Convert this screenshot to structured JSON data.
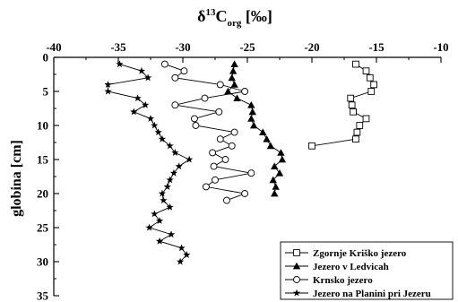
{
  "chart_data": {
    "type": "scatter",
    "title": "",
    "xlabel": {
      "prefix": "δ",
      "sup": "13",
      "main": "C",
      "sub": "org",
      "suffix": " [‰]"
    },
    "ylabel": "globina [cm]",
    "xlim": [
      -40,
      -10
    ],
    "ylim": [
      0,
      35
    ],
    "y_inverted": true,
    "x_axis_position": "top",
    "xticks": [
      "-40",
      "-35",
      "-30",
      "-25",
      "-20",
      "-15",
      "-10"
    ],
    "xtick_values": [
      -40,
      -35,
      -30,
      -25,
      -20,
      -15,
      -10
    ],
    "yticks": [
      "0",
      "5",
      "10",
      "15",
      "20",
      "25",
      "30",
      "35"
    ],
    "ytick_values": [
      0,
      5,
      10,
      15,
      20,
      25,
      30,
      35
    ],
    "grid": false,
    "legend_position": "bottom-right",
    "series": [
      {
        "name": "Zgornje Kriško jezero",
        "marker": "square-open",
        "points": [
          [
            -16.6,
            1
          ],
          [
            -15.8,
            2
          ],
          [
            -15.5,
            3
          ],
          [
            -15.2,
            4
          ],
          [
            -15.4,
            5
          ],
          [
            -17.0,
            6
          ],
          [
            -16.9,
            7
          ],
          [
            -16.8,
            8
          ],
          [
            -15.8,
            9
          ],
          [
            -16.3,
            10
          ],
          [
            -16.5,
            11
          ],
          [
            -16.6,
            12
          ],
          [
            -20.0,
            13
          ]
        ]
      },
      {
        "name": "Jezero v Ledvicah",
        "marker": "triangle-filled",
        "points": [
          [
            -26.0,
            1
          ],
          [
            -26.1,
            2
          ],
          [
            -26.2,
            3
          ],
          [
            -26.0,
            4
          ],
          [
            -26.5,
            5
          ],
          [
            -25.8,
            6
          ],
          [
            -24.7,
            7
          ],
          [
            -24.6,
            8
          ],
          [
            -24.7,
            9
          ],
          [
            -24.5,
            10
          ],
          [
            -23.8,
            11
          ],
          [
            -23.5,
            12
          ],
          [
            -23.2,
            13
          ],
          [
            -22.4,
            14
          ],
          [
            -22.3,
            15
          ],
          [
            -22.9,
            16
          ],
          [
            -22.5,
            17
          ],
          [
            -23.0,
            18
          ],
          [
            -22.8,
            19
          ],
          [
            -22.9,
            20
          ]
        ]
      },
      {
        "name": "Krnsko jezero",
        "marker": "circle-open",
        "points": [
          [
            -31.4,
            1
          ],
          [
            -29.9,
            2
          ],
          [
            -30.6,
            3
          ],
          [
            -27.1,
            4
          ],
          [
            -25.2,
            5
          ],
          [
            -28.3,
            6
          ],
          [
            -30.6,
            7
          ],
          [
            -27.2,
            8
          ],
          [
            -29.1,
            9
          ],
          [
            -29.0,
            10
          ],
          [
            -26.0,
            11
          ],
          [
            -27.1,
            12
          ],
          [
            -26.2,
            13
          ],
          [
            -27.7,
            14
          ],
          [
            -26.7,
            15
          ],
          [
            -27.6,
            16
          ],
          [
            -24.7,
            17
          ],
          [
            -27.5,
            18
          ],
          [
            -28.2,
            19
          ],
          [
            -25.2,
            20
          ],
          [
            -26.6,
            21
          ]
        ]
      },
      {
        "name": "Jezero na Planini pri Jezeru",
        "marker": "star-filled",
        "points": [
          [
            -34.9,
            1
          ],
          [
            -33.2,
            2
          ],
          [
            -32.7,
            3
          ],
          [
            -35.8,
            4
          ],
          [
            -35.8,
            5
          ],
          [
            -33.5,
            6
          ],
          [
            -32.9,
            7
          ],
          [
            -33.8,
            8
          ],
          [
            -32.5,
            9
          ],
          [
            -32.2,
            10
          ],
          [
            -31.9,
            11
          ],
          [
            -31.6,
            12
          ],
          [
            -31.0,
            13
          ],
          [
            -30.6,
            14
          ],
          [
            -29.5,
            15
          ],
          [
            -30.3,
            16
          ],
          [
            -30.7,
            17
          ],
          [
            -31.0,
            18
          ],
          [
            -31.2,
            19
          ],
          [
            -31.6,
            20
          ],
          [
            -31.5,
            21
          ],
          [
            -31.0,
            22
          ],
          [
            -32.2,
            23
          ],
          [
            -31.8,
            24
          ],
          [
            -32.6,
            25
          ],
          [
            -30.9,
            26
          ],
          [
            -31.8,
            27
          ],
          [
            -30.1,
            28
          ],
          [
            -29.7,
            29
          ],
          [
            -30.2,
            30
          ]
        ]
      }
    ]
  }
}
